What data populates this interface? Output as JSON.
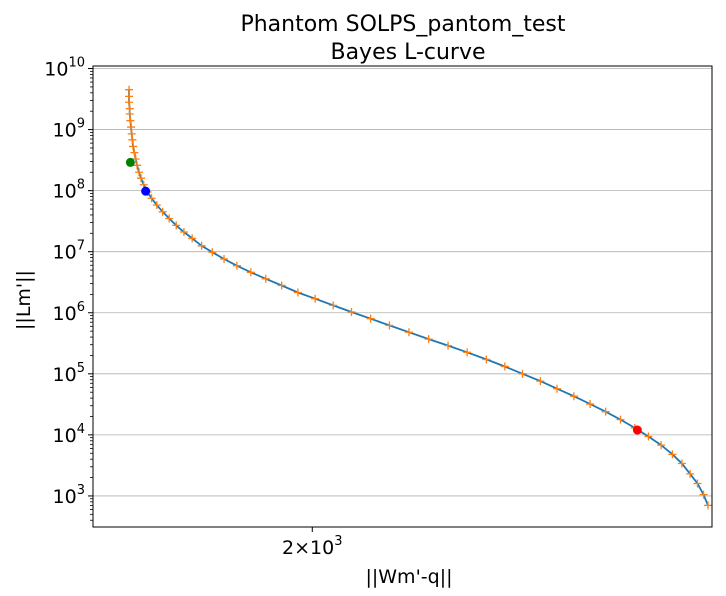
{
  "chart_data": {
    "type": "line",
    "title": "Phantom SOLPS_pantom_test",
    "subtitle": "Bayes L-curve",
    "xlabel": "||Wm'-q||",
    "ylabel": "||Lm'||",
    "xscale": "log",
    "yscale": "log",
    "grid": "y-major",
    "x_ticks": [
      {
        "value": 2000,
        "base": "2",
        "exp": "3"
      }
    ],
    "y_ticks": [
      {
        "value": 1000,
        "exp": "3"
      },
      {
        "value": 10000,
        "exp": "4"
      },
      {
        "value": 100000,
        "exp": "5"
      },
      {
        "value": 1000000,
        "exp": "6"
      },
      {
        "value": 10000000,
        "exp": "7"
      },
      {
        "value": 100000000,
        "exp": "8"
      },
      {
        "value": 1000000000,
        "exp": "9"
      },
      {
        "value": 10000000000,
        "exp": "10"
      }
    ],
    "xlim": [
      1650,
      2840
    ],
    "ylim": [
      310,
      11000000000
    ],
    "curve_points": [
      [
        1703,
        4500000000
      ],
      [
        1703,
        3500000000
      ],
      [
        1703,
        2800000000
      ],
      [
        1704,
        2200000000
      ],
      [
        1704,
        1800000000
      ],
      [
        1705,
        1400000000
      ],
      [
        1706,
        1100000000
      ],
      [
        1707,
        850000000
      ],
      [
        1708,
        680000000
      ],
      [
        1709,
        530000000
      ],
      [
        1711,
        420000000
      ],
      [
        1713,
        330000000
      ],
      [
        1715,
        260000000
      ],
      [
        1718,
        200000000
      ],
      [
        1721,
        160000000
      ],
      [
        1725,
        125000000
      ],
      [
        1731,
        95000000
      ],
      [
        1737,
        75000000
      ],
      [
        1745,
        58000000
      ],
      [
        1754,
        45000000
      ],
      [
        1764,
        35000000
      ],
      [
        1775,
        27000000
      ],
      [
        1787,
        21000000
      ],
      [
        1800,
        16500000
      ],
      [
        1815,
        12500000
      ],
      [
        1832,
        9800000
      ],
      [
        1851,
        7600000
      ],
      [
        1872,
        5900000
      ],
      [
        1895,
        4600000
      ],
      [
        1920,
        3600000
      ],
      [
        1947,
        2800000
      ],
      [
        1975,
        2150000
      ],
      [
        2005,
        1700000
      ],
      [
        2037,
        1320000
      ],
      [
        2070,
        1030000
      ],
      [
        2105,
        800000
      ],
      [
        2140,
        620000
      ],
      [
        2177,
        480000
      ],
      [
        2215,
        370000
      ],
      [
        2253,
        290000
      ],
      [
        2291,
        225000
      ],
      [
        2330,
        172000
      ],
      [
        2368,
        132000
      ],
      [
        2405,
        100000
      ],
      [
        2443,
        76000
      ],
      [
        2479,
        57000
      ],
      [
        2516,
        43000
      ],
      [
        2552,
        32000
      ],
      [
        2587,
        24000
      ],
      [
        2621,
        17800
      ],
      [
        2654,
        13000
      ],
      [
        2686,
        9400
      ],
      [
        2716,
        6800
      ],
      [
        2743,
        4800
      ],
      [
        2766,
        3400
      ],
      [
        2786,
        2300
      ],
      [
        2804,
        1600
      ],
      [
        2819,
        1050
      ],
      [
        2830,
        700
      ]
    ],
    "curve_color": "#1f77b4",
    "marker_color": "#ff7f0e",
    "highlight_points": [
      {
        "x": 1705,
        "y": 290000000,
        "color": "#008000"
      },
      {
        "x": 1728,
        "y": 98000000,
        "color": "#0000ff"
      },
      {
        "x": 2660,
        "y": 12000,
        "color": "#ff0000"
      }
    ]
  }
}
